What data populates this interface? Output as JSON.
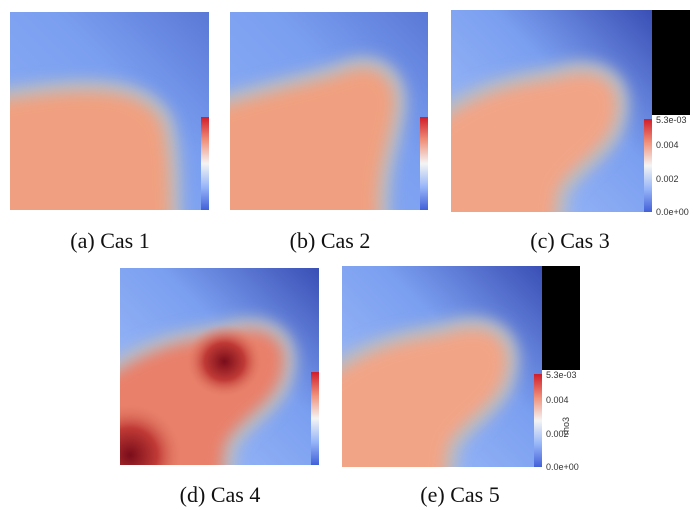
{
  "captions": [
    "(a) Cas 1",
    "(b) Cas 2",
    "(c) Cas 3",
    "(d) Cas 4",
    "(e) Cas 5"
  ],
  "colorbar": {
    "max_label": "5.3e-03",
    "ticks": [
      "0.004",
      "0.002"
    ],
    "min_label": "0.0e+00",
    "title": "rho3"
  }
}
